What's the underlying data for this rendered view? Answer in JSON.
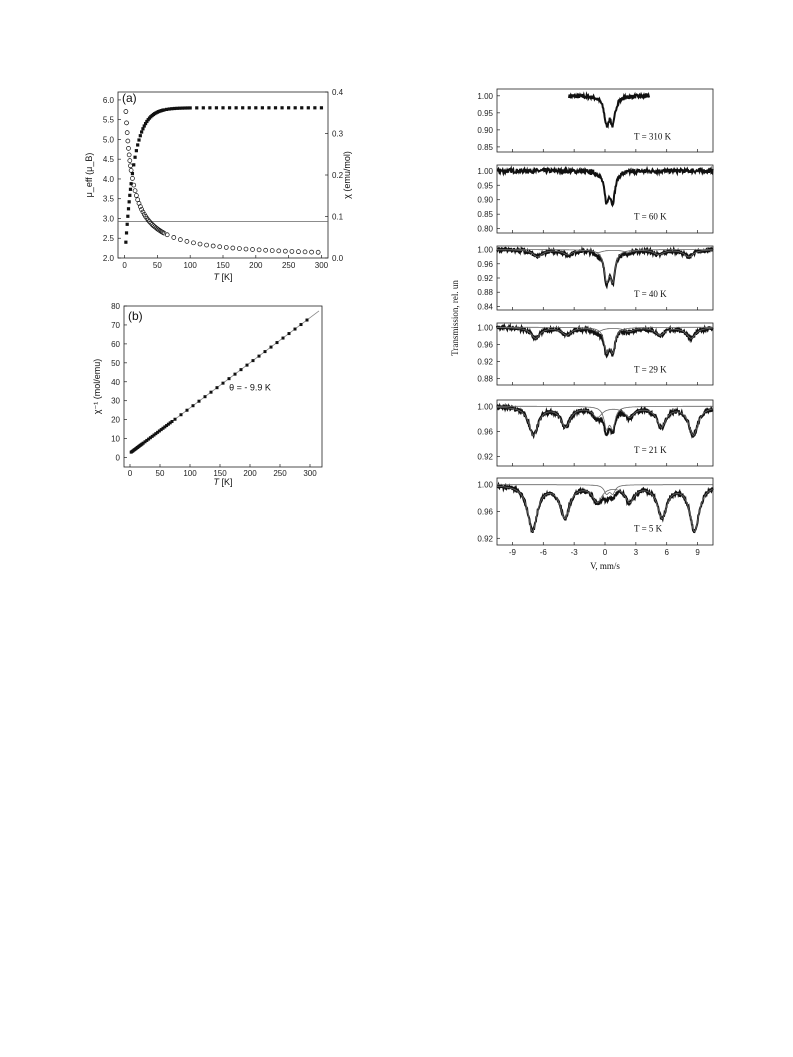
{
  "chart_data": [
    {
      "id": "a",
      "type": "scatter",
      "panel_label": "(a)",
      "xlabel_italic": "T",
      "xlabel_unit": " [K]",
      "ylabel_left": "μ_eff (μ_B)",
      "ylabel_right": "χ (emu/mol)",
      "xlim": [
        -10,
        310
      ],
      "ylim_left": [
        2.0,
        6.2
      ],
      "ylim_right": [
        0.0,
        0.4
      ],
      "xticks": [
        0,
        50,
        100,
        150,
        200,
        250,
        300
      ],
      "yticks_left": [
        2.0,
        2.5,
        3.0,
        3.5,
        4.0,
        4.5,
        5.0,
        5.5,
        6.0
      ],
      "yticks_right": [
        0.0,
        0.1,
        0.2,
        0.3,
        0.4
      ],
      "series": [
        {
          "marker": "filled-square",
          "axis": "left",
          "formula": "mu",
          "x_range": [
            2,
            300
          ],
          "plateau": 5.8,
          "low_value": 2.4
        },
        {
          "marker": "open-circle",
          "axis": "right",
          "formula": "chi",
          "x_range": [
            2,
            300
          ],
          "curie_C": 4.2,
          "theta": -9.9
        }
      ],
      "reference_line": {
        "axis": "left",
        "y": 2.92
      }
    },
    {
      "id": "b",
      "type": "scatter",
      "panel_label": "(b)",
      "xlabel_italic": "T",
      "xlabel_unit": " [K]",
      "ylabel": "χ⁻¹ (mol/emu)",
      "xlim": [
        -10,
        320
      ],
      "ylim": [
        -5,
        80
      ],
      "xticks": [
        0,
        50,
        100,
        150,
        200,
        250,
        300
      ],
      "yticks": [
        0,
        10,
        20,
        30,
        40,
        50,
        60,
        70,
        80
      ],
      "annotation": "θ = - 9.9 K",
      "series": [
        {
          "marker": "filled-square",
          "x_range": [
            2,
            300
          ],
          "curie_C": 4.2,
          "theta": -9.9
        }
      ],
      "fit_line": {
        "x": [
          0,
          315
        ],
        "y": [
          2.36,
          77.4
        ]
      }
    },
    {
      "id": "mossbauer",
      "type": "line",
      "xlabel": "V, mm/s",
      "ylabel": "Transmission, rel. un",
      "xlim": [
        -10.5,
        10.5
      ],
      "xticks": [
        -9,
        -6,
        -3,
        0,
        3,
        6,
        9
      ],
      "spectra": [
        {
          "label": "T = 310 K",
          "yticks": [
            "1.00",
            "0.95",
            "0.90",
            "0.85"
          ],
          "ylim": [
            0.835,
            1.02
          ],
          "x_range": [
            -3.5,
            4.3
          ],
          "doublet_depth": 0.15,
          "sextet_depth": 0.0,
          "sextet_split": 0
        },
        {
          "label": "T = 60 K",
          "yticks": [
            "1.00",
            "0.95",
            "0.90",
            "0.85",
            "0.80"
          ],
          "ylim": [
            0.785,
            1.02
          ],
          "x_range": [
            -10.5,
            10.5
          ],
          "doublet_depth": 0.19,
          "sextet_depth": 0.0,
          "sextet_split": 0
        },
        {
          "label": "T = 40 K",
          "yticks": [
            "1.00",
            "0.96",
            "0.92",
            "0.88",
            "0.84"
          ],
          "ylim": [
            0.83,
            1.01
          ],
          "x_range": [
            -10.5,
            10.5
          ],
          "doublet_depth": 0.16,
          "sextet_depth": 0.02,
          "sextet_split": 7.0
        },
        {
          "label": "T = 29 K",
          "yticks": [
            "1.00",
            "0.96",
            "0.92",
            "0.88"
          ],
          "ylim": [
            0.865,
            1.01
          ],
          "x_range": [
            -10.5,
            10.5
          ],
          "doublet_depth": 0.105,
          "sextet_depth": 0.025,
          "sextet_split": 7.2
        },
        {
          "label": "T = 21 K",
          "yticks": [
            "1.00",
            "0.96",
            "0.92"
          ],
          "ylim": [
            0.905,
            1.01
          ],
          "x_range": [
            -10.5,
            10.5
          ],
          "doublet_depth": 0.065,
          "sextet_depth": 0.045,
          "sextet_split": 7.4
        },
        {
          "label": "T = 5 K",
          "yticks": [
            "1.00",
            "0.96",
            "0.92"
          ],
          "ylim": [
            0.91,
            1.01
          ],
          "x_range": [
            -10.5,
            10.5
          ],
          "doublet_depth": 0.025,
          "sextet_depth": 0.068,
          "sextet_split": 7.5
        }
      ]
    }
  ]
}
